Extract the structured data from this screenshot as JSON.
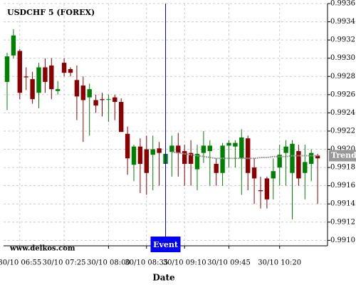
{
  "chart_data": {
    "type": "candlestick",
    "title": "USDCHF 5 (FOREX)",
    "x_label": "Date",
    "watermark": "www.delkos.com",
    "categories": [
      null,
      null,
      "30/10 06:55",
      null,
      null,
      null,
      null,
      null,
      null,
      "30/10 07:25",
      null,
      null,
      null,
      null,
      null,
      null,
      "30/10 08:00",
      null,
      null,
      null,
      null,
      null,
      "30/10 08:35",
      null,
      null,
      null,
      null,
      null,
      "30/10 09:10",
      null,
      null,
      null,
      null,
      null,
      null,
      "30/10 09:45",
      null,
      null,
      null,
      null,
      null,
      null,
      null,
      "30/10 10:20",
      null,
      null,
      null,
      null,
      null,
      null
    ],
    "open": [
      0.99274,
      0.99303,
      0.99308,
      0.9928,
      0.99277,
      0.99262,
      0.9929,
      0.99292,
      0.99264,
      0.99295,
      0.99288,
      0.99276,
      0.9927,
      0.99257,
      0.99254,
      0.99255,
      0.99255,
      0.99257,
      0.99252,
      0.99217,
      0.99183,
      0.99203,
      0.992,
      0.99194,
      0.99201,
      0.99184,
      0.99197,
      0.99204,
      0.99198,
      0.99196,
      0.99178,
      0.99196,
      0.99198,
      0.99184,
      0.99174,
      0.99204,
      0.99203,
      0.9919,
      0.99212,
      0.9918,
      0.99155,
      0.99168,
      0.99168,
      0.9918,
      0.99196,
      0.99174,
      0.99198,
      0.99174,
      0.99184,
      0.99193
    ],
    "high": [
      0.99306,
      0.99332,
      0.9931,
      0.9929,
      0.99285,
      0.99295,
      0.993,
      0.993,
      0.99275,
      0.993,
      0.9929,
      0.99292,
      0.9928,
      0.99272,
      0.9926,
      0.99262,
      0.9926,
      0.9926,
      0.99256,
      0.99225,
      0.99205,
      0.99212,
      0.99215,
      0.99215,
      0.99208,
      0.99205,
      0.99215,
      0.99218,
      0.99205,
      0.9921,
      0.99205,
      0.9922,
      0.9921,
      0.9919,
      0.99207,
      0.9921,
      0.9921,
      0.99222,
      0.99215,
      0.9919,
      0.9917,
      0.9917,
      0.9919,
      0.99205,
      0.9921,
      0.9921,
      0.99205,
      0.99205,
      0.992,
      0.99195
    ],
    "low": [
      0.99243,
      0.993,
      0.99255,
      0.99265,
      0.9925,
      0.99245,
      0.99262,
      0.99255,
      0.9926,
      0.9928,
      0.9928,
      0.99232,
      0.99208,
      0.99215,
      0.9924,
      0.99236,
      0.9923,
      0.99232,
      0.9922,
      0.99172,
      0.99165,
      0.99152,
      0.9915,
      0.99155,
      0.9916,
      0.99165,
      0.9917,
      0.9917,
      0.9916,
      0.9916,
      0.99155,
      0.99185,
      0.9916,
      0.9916,
      0.9916,
      0.9918,
      0.9918,
      0.9915,
      0.99155,
      0.9914,
      0.99135,
      0.99135,
      0.99145,
      0.9916,
      0.9916,
      0.99123,
      0.9916,
      0.99145,
      0.99165,
      0.9914
    ],
    "close": [
      0.99302,
      0.99325,
      0.99262,
      0.99279,
      0.99255,
      0.9929,
      0.99274,
      0.99266,
      0.99266,
      0.99284,
      0.99284,
      0.99258,
      0.99254,
      0.99266,
      0.99248,
      0.99254,
      0.99255,
      0.99252,
      0.99219,
      0.9919,
      0.99203,
      0.99184,
      0.99174,
      0.992,
      0.99196,
      0.99195,
      0.99204,
      0.99196,
      0.99184,
      0.99184,
      0.99195,
      0.99204,
      0.99204,
      0.99174,
      0.99204,
      0.99207,
      0.99207,
      0.99213,
      0.99174,
      0.99168,
      0.99154,
      0.99145,
      0.99176,
      0.99194,
      0.99203,
      0.99206,
      0.99168,
      0.99186,
      0.99196,
      0.9919
    ],
    "up_color": "#008000",
    "down_color": "#8b0000",
    "trend": {
      "name": "Trend",
      "color": "#999999",
      "values": [
        null,
        null,
        null,
        null,
        null,
        null,
        null,
        null,
        null,
        null,
        null,
        null,
        null,
        null,
        null,
        null,
        null,
        null,
        null,
        null,
        null,
        null,
        null,
        null,
        null,
        null,
        0.99197,
        0.99196,
        0.99195,
        0.99194,
        0.99193,
        0.99192,
        0.99191,
        0.9919,
        0.9919,
        0.9919,
        0.9919,
        0.9919,
        0.9919,
        0.9919,
        0.99191,
        0.99191,
        0.99192,
        0.99192,
        0.99192,
        0.99193,
        0.99193,
        0.99193,
        0.99193,
        0.99193
      ],
      "label_value": 0.99193
    },
    "event": {
      "label": "Event",
      "index": 25,
      "color": "#0000ff"
    },
    "ylim": [
      0.99094,
      0.9936
    ],
    "yticks": [
      {
        "value": 0.991,
        "label": "0.9910"
      },
      0.9912,
      0.9914,
      0.9916,
      0.9918,
      {
        "value": 0.992,
        "label": "0.9920"
      },
      0.9922,
      0.9924,
      0.9926,
      0.9928,
      {
        "value": 0.993,
        "label": "0.9930"
      },
      0.9932,
      0.9934,
      0.9936
    ],
    "grid": true
  }
}
